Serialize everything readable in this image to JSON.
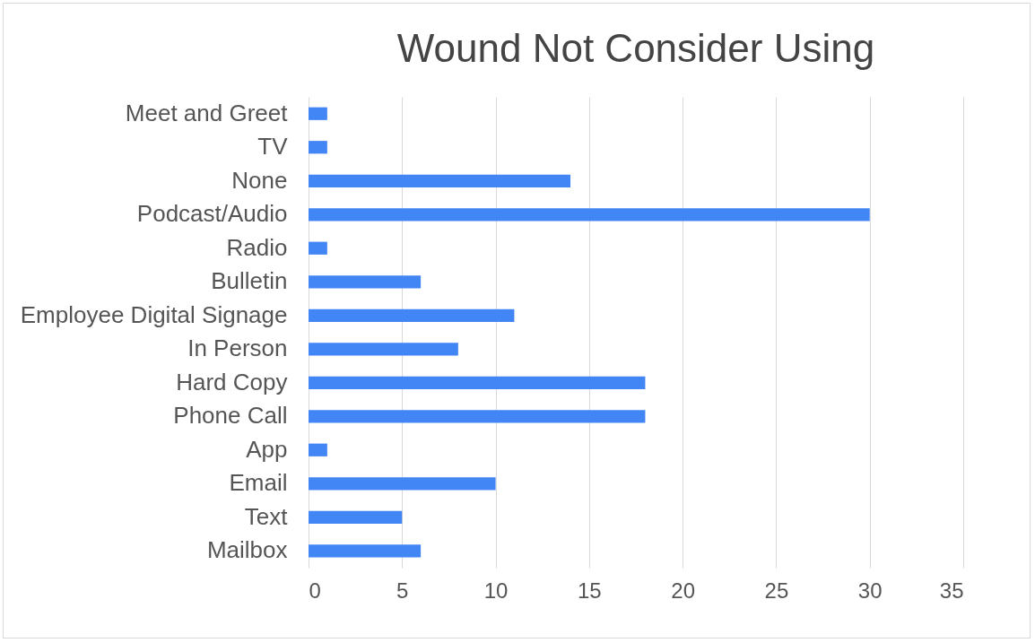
{
  "chart_data": {
    "type": "bar",
    "orientation": "horizontal",
    "title": "Wound Not Consider Using",
    "categories": [
      "Meet and Greet",
      "TV",
      "None",
      "Podcast/Audio",
      "Radio",
      "Bulletin",
      "Employee Digital Signage",
      "In Person",
      "Hard Copy",
      "Phone Call",
      "App",
      "Email",
      "Text",
      "Mailbox"
    ],
    "values": [
      1,
      1,
      14,
      30,
      1,
      6,
      11,
      8,
      18,
      18,
      1,
      10,
      5,
      6
    ],
    "color": "#4285f4",
    "xlim": [
      0,
      35
    ],
    "xticks": [
      0,
      5,
      10,
      15,
      20,
      25,
      30,
      35
    ],
    "grid": "x"
  }
}
